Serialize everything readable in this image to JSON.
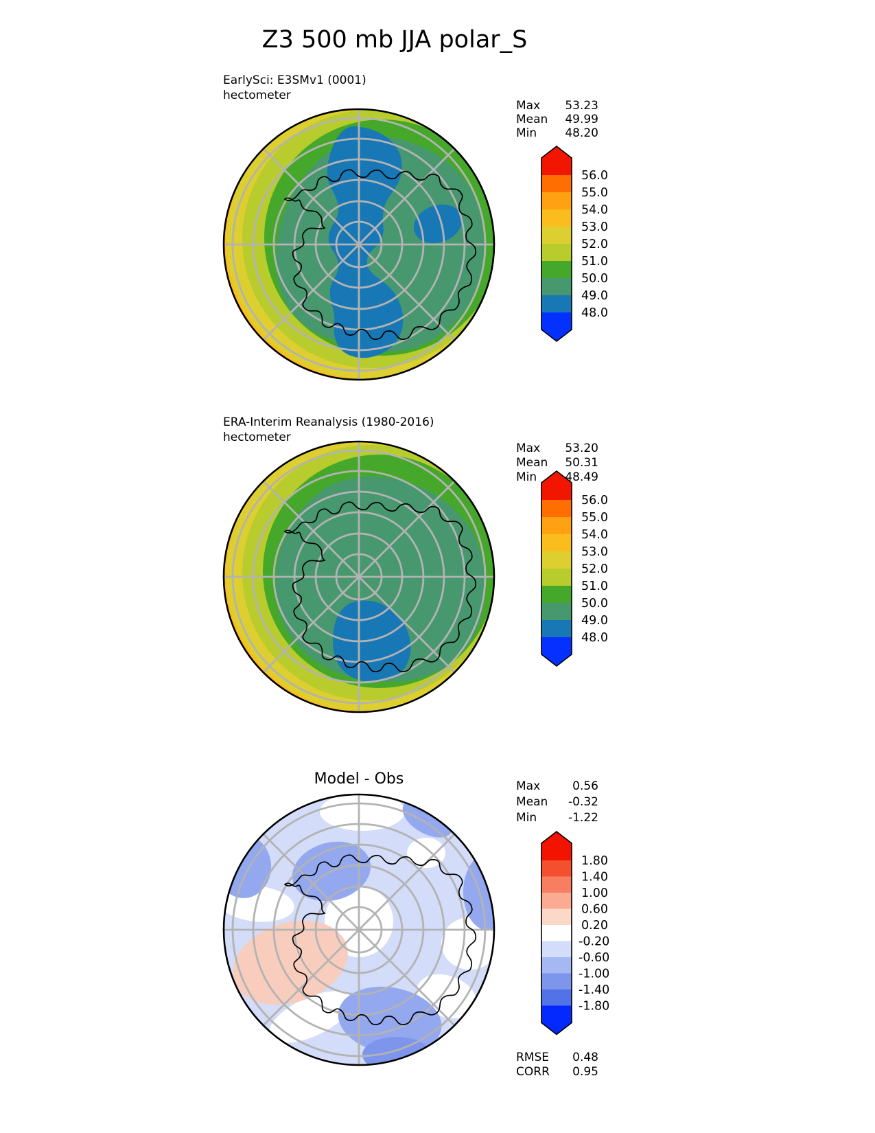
{
  "title": "Z3 500 mb JJA polar_S",
  "panels": [
    {
      "label_line1": "EarlySci: E3SMv1 (0001)",
      "label_line2": "hectometer",
      "stats": {
        "rows": [
          {
            "label": "Max",
            "value": "53.23"
          },
          {
            "label": "Mean",
            "value": "49.99"
          },
          {
            "label": "Min",
            "value": "48.20"
          }
        ]
      },
      "colorbar": {
        "tick_labels": [
          "56.0",
          "55.0",
          "54.0",
          "53.0",
          "52.0",
          "51.0",
          "50.0",
          "49.0",
          "48.0"
        ],
        "top_color": "#F21500",
        "segment_colors": [
          "#FF6E00",
          "#FFA113",
          "#FBBD1E",
          "#DCCF2F",
          "#B9CC2D",
          "#46A82B",
          "#47986F",
          "#1878B6"
        ],
        "bottom_color": "#0431FF"
      }
    },
    {
      "label_line1": "ERA-Interim Reanalysis (1980-2016)",
      "label_line2": "hectometer",
      "stats": {
        "rows": [
          {
            "label": "Max",
            "value": "53.20"
          },
          {
            "label": "Mean",
            "value": "50.31"
          },
          {
            "label": "Min",
            "value": "48.49"
          }
        ]
      },
      "colorbar": {
        "tick_labels": [
          "56.0",
          "55.0",
          "54.0",
          "53.0",
          "52.0",
          "51.0",
          "50.0",
          "49.0",
          "48.0"
        ],
        "top_color": "#F21500",
        "segment_colors": [
          "#FF6E00",
          "#FFA113",
          "#FBBD1E",
          "#DCCF2F",
          "#B9CC2D",
          "#46A82B",
          "#47986F",
          "#1878B6"
        ],
        "bottom_color": "#0431FF"
      }
    },
    {
      "title": "Model - Obs",
      "stats": {
        "rows": [
          {
            "label": "Max",
            "value": "0.56"
          },
          {
            "label": "Mean",
            "value": "-0.32"
          },
          {
            "label": "Min",
            "value": "-1.22"
          }
        ]
      },
      "colorbar": {
        "tick_labels": [
          "1.80",
          "1.40",
          "1.00",
          "0.60",
          "0.20",
          "-0.20",
          "-0.60",
          "-1.00",
          "-1.40",
          "-1.80"
        ],
        "top_color": "#F21300",
        "segment_colors": [
          "#F4502F",
          "#F77E61",
          "#FAAB92",
          "#FCD8C9",
          "#FFFFFF",
          "#D3DCF8",
          "#A5B8F1",
          "#7E95EC",
          "#5272E8"
        ],
        "bottom_color": "#0329FF"
      }
    }
  ],
  "metrics": {
    "rows": [
      {
        "label": "RMSE",
        "value": "0.48"
      },
      {
        "label": "CORR",
        "value": "0.95"
      }
    ]
  },
  "map_colors": {
    "orange": "#FBBD1E",
    "yellow": "#DCCF2F",
    "yellow_green": "#B9CC2D",
    "green": "#46A82B",
    "teal": "#47986F",
    "blue": "#1878B6",
    "pale_blue": "#D3DCF8",
    "white": "#FFFFFF",
    "salmon": "#F8CDBD",
    "mid_blue": "#93A8EF",
    "deep_blue": "#7E95EC",
    "graticule": "#B3B3B3",
    "coastline": "#000000",
    "outline": "#000000"
  },
  "chart_data": [
    {
      "type": "heatmap",
      "title": "EarlySci: E3SMv1 (0001)",
      "subtitle": "Z3 500 mb JJA polar_S",
      "units": "hectometer",
      "projection": "south-polar stereographic",
      "stats": {
        "max": 53.23,
        "mean": 49.99,
        "min": 48.2
      },
      "levels": [
        48.0,
        49.0,
        50.0,
        51.0,
        52.0,
        53.0,
        54.0,
        55.0,
        56.0
      ],
      "colors_low_to_high": [
        "#0431FF",
        "#1878B6",
        "#47986F",
        "#46A82B",
        "#B9CC2D",
        "#DCCF2F",
        "#FBBD1E",
        "#FFA113",
        "#FF6E00",
        "#F21500"
      ],
      "legend_position": "right",
      "grid": "polar graticule on",
      "features": "Two-lobed low (48-49 hm, blue) across the pole plus a small secondary low east of it; values rise outward through 49-50 (teal) and 50-51 (green) rings to 52-54 hm (yellow-orange) at the lower-left map edge"
    },
    {
      "type": "heatmap",
      "title": "ERA-Interim Reanalysis (1980-2016)",
      "subtitle": "Z3 500 mb JJA polar_S",
      "units": "hectometer",
      "projection": "south-polar stereographic",
      "stats": {
        "max": 53.2,
        "mean": 50.31,
        "min": 48.49
      },
      "levels": [
        48.0,
        49.0,
        50.0,
        51.0,
        52.0,
        53.0,
        54.0,
        55.0,
        56.0
      ],
      "colors_low_to_high": [
        "#0431FF",
        "#1878B6",
        "#47986F",
        "#46A82B",
        "#B9CC2D",
        "#DCCF2F",
        "#FBBD1E",
        "#FFA113",
        "#FF6E00",
        "#F21500"
      ],
      "legend_position": "right",
      "grid": "polar graticule on",
      "features": "Single compact low (48-49 hm, blue) just equatorward of the pole toward the bottom; smooth quasi-zonal rings increasing to 52-53 hm (yellow) at the lower-left edge"
    },
    {
      "type": "heatmap",
      "title": "Model - Obs",
      "units": "hectometer",
      "projection": "south-polar stereographic",
      "stats": {
        "max": 0.56,
        "mean": -0.32,
        "min": -1.22,
        "rmse": 0.48,
        "corr": 0.95
      },
      "levels": [
        -1.8,
        -1.4,
        -1.0,
        -0.6,
        -0.2,
        0.2,
        0.6,
        1.0,
        1.4,
        1.8
      ],
      "colors_low_to_high": [
        "#0329FF",
        "#5272E8",
        "#7E95EC",
        "#A5B8F1",
        "#D3DCF8",
        "#FFFFFF",
        "#FCD8C9",
        "#FAAB92",
        "#F77E61",
        "#F4502F",
        "#F21300"
      ],
      "legend_position": "right",
      "grid": "polar graticule on",
      "features": "Predominantly weak negative bias (-0.2 to -1.0, light blues); stronger negative blobs (-0.6 to -1.4) upper-left, at the left and right rims and bottom-center; one positive patch (+0.2 to +0.6, salmon) over the peninsula sector at left; near-zero (white) over the pole, top edge and mid-right"
    }
  ]
}
